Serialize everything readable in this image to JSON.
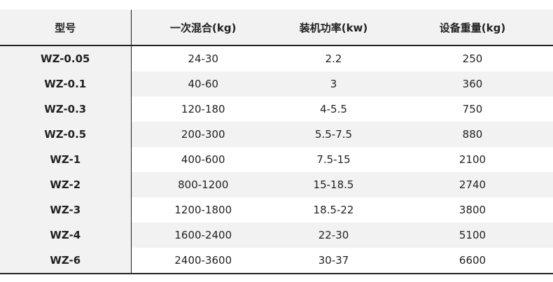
{
  "table": {
    "headers": [
      "型号",
      "一次混合(kg)",
      "装机功率(kw)",
      "设备重量(kg)"
    ],
    "rows": [
      [
        "WZ-0.05",
        "24-30",
        "2.2",
        "250"
      ],
      [
        "WZ-0.1",
        "40-60",
        "3",
        "360"
      ],
      [
        "WZ-0.3",
        "120-180",
        "4-5.5",
        "750"
      ],
      [
        "WZ-0.5",
        "200-300",
        "5.5-7.5",
        "880"
      ],
      [
        "WZ-1",
        "400-600",
        "7.5-15",
        "2100"
      ],
      [
        "WZ-2",
        "800-1200",
        "15-18.5",
        "2740"
      ],
      [
        "WZ-3",
        "1200-1800",
        "18.5-22",
        "3800"
      ],
      [
        "WZ-4",
        "1600-2400",
        "22-30",
        "5100"
      ],
      [
        "WZ-6",
        "2400-3600",
        "30-37",
        "6600"
      ]
    ]
  }
}
